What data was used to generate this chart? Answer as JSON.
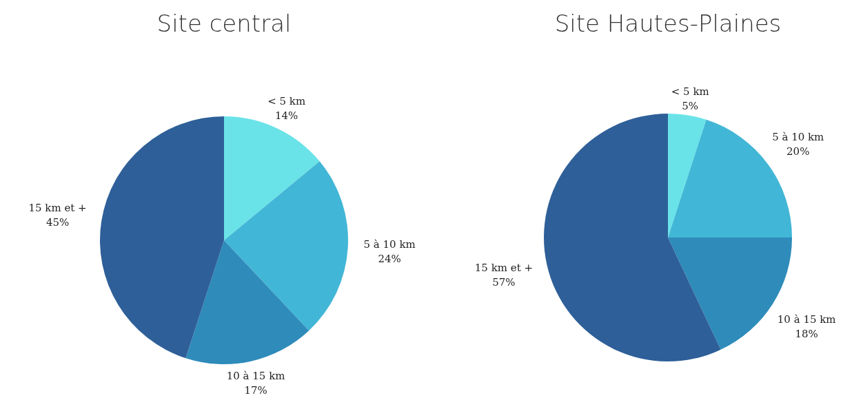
{
  "chart_data": [
    {
      "type": "pie",
      "title": "Site central",
      "categories": [
        "< 5 km",
        "5 à 10 km",
        "10 à 15 km",
        "15 km et +"
      ],
      "values": [
        14,
        24,
        17,
        45
      ],
      "value_labels": [
        "14%",
        "24%",
        "17%",
        "45%"
      ],
      "colors": [
        "#6ae3e8",
        "#42b6d6",
        "#2e8bba",
        "#2e5f98"
      ]
    },
    {
      "type": "pie",
      "title": "Site Hautes-Plaines",
      "categories": [
        "< 5 km",
        "5 à 10 km",
        "10 à 15 km",
        "15 km et +"
      ],
      "values": [
        5,
        20,
        18,
        57
      ],
      "value_labels": [
        "5%",
        "20%",
        "18%",
        "57%"
      ],
      "colors": [
        "#6ae3e8",
        "#42b6d6",
        "#2e8bba",
        "#2e5f98"
      ]
    }
  ]
}
